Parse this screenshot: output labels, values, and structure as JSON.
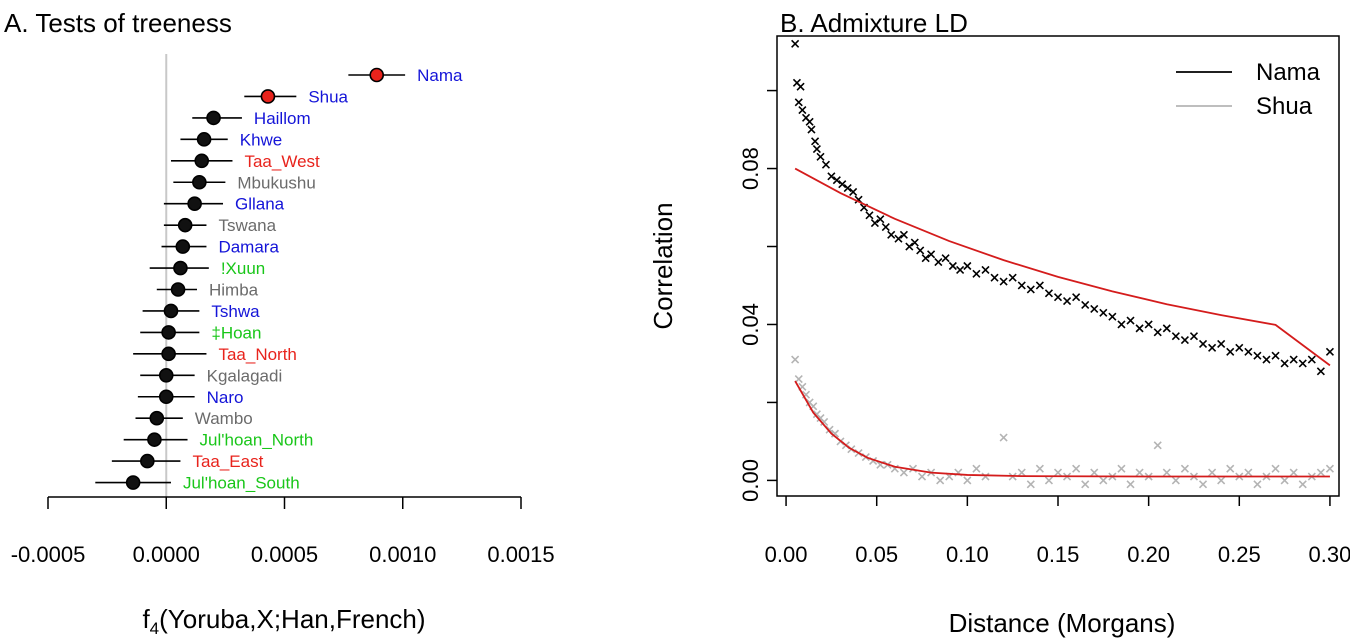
{
  "chart_data": [
    {
      "type": "forest",
      "title": "A. Tests of treeness",
      "xlabel_prefix": "f",
      "xlabel_sub": "4",
      "xlabel_rest": "(Yoruba,X;Han,French)",
      "xlim": [
        -0.0005,
        0.0015
      ],
      "xticks": [
        -0.0005,
        0.0,
        0.0005,
        0.001,
        0.0015
      ],
      "xtick_labels": [
        "-0.0005",
        "0.0000",
        "0.0005",
        "0.0010",
        "0.0015"
      ],
      "reference_line": 0.0,
      "colors": {
        "red_pt": "#e8231c",
        "black_pt": "#111111",
        "ci": "#000000",
        "ref": "#c8c8c8"
      },
      "populations": [
        {
          "label": "Nama",
          "value": 0.00089,
          "lo": 0.00077,
          "hi": 0.00101,
          "label_color": "#1414d8",
          "point": "red"
        },
        {
          "label": "Shua",
          "value": 0.00043,
          "lo": 0.00033,
          "hi": 0.00055,
          "label_color": "#1414d8",
          "point": "red"
        },
        {
          "label": "Haillom",
          "value": 0.0002,
          "lo": 0.00011,
          "hi": 0.00032,
          "label_color": "#1414d8",
          "point": "black"
        },
        {
          "label": "Khwe",
          "value": 0.00016,
          "lo": 6e-05,
          "hi": 0.00026,
          "label_color": "#1414d8",
          "point": "black"
        },
        {
          "label": "Taa_West",
          "value": 0.00015,
          "lo": 2e-05,
          "hi": 0.00028,
          "label_color": "#e8231c",
          "point": "black"
        },
        {
          "label": "Mbukushu",
          "value": 0.00014,
          "lo": 3e-05,
          "hi": 0.00025,
          "label_color": "#6b6b6b",
          "point": "black"
        },
        {
          "label": "Gllana",
          "value": 0.00012,
          "lo": -1e-05,
          "hi": 0.00024,
          "label_color": "#1414d8",
          "point": "black"
        },
        {
          "label": "Tswana",
          "value": 8e-05,
          "lo": -1e-05,
          "hi": 0.00017,
          "label_color": "#6b6b6b",
          "point": "black"
        },
        {
          "label": "Damara",
          "value": 7e-05,
          "lo": -2e-05,
          "hi": 0.00017,
          "label_color": "#1414d8",
          "point": "black"
        },
        {
          "label": "!Xuun",
          "value": 6e-05,
          "lo": -7e-05,
          "hi": 0.00018,
          "label_color": "#19c619",
          "point": "black"
        },
        {
          "label": "Himba",
          "value": 5e-05,
          "lo": -4e-05,
          "hi": 0.00013,
          "label_color": "#6b6b6b",
          "point": "black"
        },
        {
          "label": "Tshwa",
          "value": 2e-05,
          "lo": -0.0001,
          "hi": 0.00014,
          "label_color": "#1414d8",
          "point": "black"
        },
        {
          "label": "‡Hoan",
          "value": 1e-05,
          "lo": -0.00011,
          "hi": 0.00014,
          "label_color": "#19c619",
          "point": "black"
        },
        {
          "label": "Taa_North",
          "value": 1e-05,
          "lo": -0.00014,
          "hi": 0.00017,
          "label_color": "#e8231c",
          "point": "black"
        },
        {
          "label": "Kgalagadi",
          "value": 0.0,
          "lo": -0.00011,
          "hi": 0.00012,
          "label_color": "#6b6b6b",
          "point": "black"
        },
        {
          "label": "Naro",
          "value": 0.0,
          "lo": -0.00012,
          "hi": 0.00012,
          "label_color": "#1414d8",
          "point": "black"
        },
        {
          "label": "Wambo",
          "value": -4e-05,
          "lo": -0.00013,
          "hi": 7e-05,
          "label_color": "#6b6b6b",
          "point": "black"
        },
        {
          "label": "Jul'hoan_North",
          "value": -5e-05,
          "lo": -0.00018,
          "hi": 9e-05,
          "label_color": "#19c619",
          "point": "black"
        },
        {
          "label": "Taa_East",
          "value": -8e-05,
          "lo": -0.00023,
          "hi": 6e-05,
          "label_color": "#e8231c",
          "point": "black"
        },
        {
          "label": "Jul'hoan_South",
          "value": -0.00014,
          "lo": -0.0003,
          "hi": 2e-05,
          "label_color": "#19c619",
          "point": "black"
        }
      ]
    },
    {
      "type": "scatter",
      "title": "B. Admixture LD",
      "xlabel": "Distance (Morgans)",
      "ylabel": "Correlation",
      "xlim": [
        -0.005,
        0.305
      ],
      "ylim": [
        -0.004,
        0.114
      ],
      "xticks": [
        0.0,
        0.05,
        0.1,
        0.15,
        0.2,
        0.25,
        0.3
      ],
      "xtick_labels": [
        "0.00",
        "0.05",
        "0.10",
        "0.15",
        "0.20",
        "0.25",
        "0.30"
      ],
      "yticks": [
        0.0,
        0.04,
        0.08
      ],
      "ytick_labels": [
        "0.00",
        "0.04",
        "0.08"
      ],
      "legend_position": "top-right",
      "legend": [
        {
          "name": "Nama",
          "color": "#000000"
        },
        {
          "name": "Shua",
          "color": "#b4b4b4"
        }
      ],
      "fit_color": "#d41c1c",
      "series": [
        {
          "name": "Nama",
          "color": "#000000",
          "points": [
            [
              0.005,
              0.112
            ],
            [
              0.006,
              0.102
            ],
            [
              0.008,
              0.101
            ],
            [
              0.007,
              0.097
            ],
            [
              0.009,
              0.095
            ],
            [
              0.011,
              0.093
            ],
            [
              0.013,
              0.092
            ],
            [
              0.014,
              0.09
            ],
            [
              0.016,
              0.087
            ],
            [
              0.017,
              0.085
            ],
            [
              0.019,
              0.083
            ],
            [
              0.022,
              0.081
            ],
            [
              0.025,
              0.078
            ],
            [
              0.028,
              0.077
            ],
            [
              0.031,
              0.076
            ],
            [
              0.034,
              0.075
            ],
            [
              0.037,
              0.074
            ],
            [
              0.04,
              0.072
            ],
            [
              0.043,
              0.07
            ],
            [
              0.046,
              0.068
            ],
            [
              0.049,
              0.066
            ],
            [
              0.052,
              0.067
            ],
            [
              0.055,
              0.065
            ],
            [
              0.058,
              0.063
            ],
            [
              0.062,
              0.062
            ],
            [
              0.065,
              0.063
            ],
            [
              0.068,
              0.06
            ],
            [
              0.071,
              0.061
            ],
            [
              0.074,
              0.059
            ],
            [
              0.077,
              0.057
            ],
            [
              0.08,
              0.058
            ],
            [
              0.084,
              0.056
            ],
            [
              0.088,
              0.057
            ],
            [
              0.092,
              0.055
            ],
            [
              0.096,
              0.054
            ],
            [
              0.1,
              0.055
            ],
            [
              0.105,
              0.053
            ],
            [
              0.11,
              0.054
            ],
            [
              0.115,
              0.052
            ],
            [
              0.12,
              0.051
            ],
            [
              0.125,
              0.052
            ],
            [
              0.13,
              0.05
            ],
            [
              0.135,
              0.049
            ],
            [
              0.14,
              0.05
            ],
            [
              0.145,
              0.048
            ],
            [
              0.15,
              0.047
            ],
            [
              0.155,
              0.046
            ],
            [
              0.16,
              0.047
            ],
            [
              0.165,
              0.045
            ],
            [
              0.17,
              0.044
            ],
            [
              0.175,
              0.043
            ],
            [
              0.18,
              0.042
            ],
            [
              0.185,
              0.04
            ],
            [
              0.19,
              0.041
            ],
            [
              0.195,
              0.039
            ],
            [
              0.2,
              0.04
            ],
            [
              0.205,
              0.038
            ],
            [
              0.21,
              0.039
            ],
            [
              0.215,
              0.037
            ],
            [
              0.22,
              0.036
            ],
            [
              0.225,
              0.037
            ],
            [
              0.23,
              0.035
            ],
            [
              0.235,
              0.034
            ],
            [
              0.24,
              0.035
            ],
            [
              0.245,
              0.033
            ],
            [
              0.25,
              0.034
            ],
            [
              0.255,
              0.033
            ],
            [
              0.26,
              0.032
            ],
            [
              0.265,
              0.031
            ],
            [
              0.27,
              0.032
            ],
            [
              0.275,
              0.03
            ],
            [
              0.28,
              0.031
            ],
            [
              0.285,
              0.03
            ],
            [
              0.29,
              0.031
            ],
            [
              0.295,
              0.028
            ],
            [
              0.3,
              0.033
            ]
          ],
          "fit": [
            [
              0.005,
              0.08
            ],
            [
              0.03,
              0.0737
            ],
            [
              0.06,
              0.0671
            ],
            [
              0.09,
              0.0614
            ],
            [
              0.12,
              0.0565
            ],
            [
              0.15,
              0.0522
            ],
            [
              0.18,
              0.0485
            ],
            [
              0.21,
              0.0452
            ],
            [
              0.24,
              0.0424
            ],
            [
              0.27,
              0.0399
            ],
            [
              0.3,
              0.0295
            ]
          ]
        },
        {
          "name": "Shua",
          "color": "#b4b4b4",
          "points": [
            [
              0.005,
              0.031
            ],
            [
              0.007,
              0.026
            ],
            [
              0.009,
              0.024
            ],
            [
              0.011,
              0.022
            ],
            [
              0.013,
              0.02
            ],
            [
              0.015,
              0.019
            ],
            [
              0.017,
              0.017
            ],
            [
              0.019,
              0.016
            ],
            [
              0.021,
              0.015
            ],
            [
              0.024,
              0.013
            ],
            [
              0.027,
              0.012
            ],
            [
              0.03,
              0.01
            ],
            [
              0.033,
              0.009
            ],
            [
              0.036,
              0.008
            ],
            [
              0.04,
              0.007
            ],
            [
              0.044,
              0.006
            ],
            [
              0.048,
              0.005
            ],
            [
              0.052,
              0.004
            ],
            [
              0.056,
              0.004
            ],
            [
              0.06,
              0.003
            ],
            [
              0.065,
              0.002
            ],
            [
              0.07,
              0.003
            ],
            [
              0.075,
              0.001
            ],
            [
              0.08,
              0.002
            ],
            [
              0.085,
              0.0
            ],
            [
              0.09,
              0.001
            ],
            [
              0.095,
              0.002
            ],
            [
              0.1,
              0.0
            ],
            [
              0.105,
              0.003
            ],
            [
              0.11,
              0.001
            ],
            [
              0.12,
              0.011
            ],
            [
              0.125,
              0.001
            ],
            [
              0.13,
              0.002
            ],
            [
              0.135,
              -0.001
            ],
            [
              0.14,
              0.003
            ],
            [
              0.145,
              0.0
            ],
            [
              0.15,
              0.002
            ],
            [
              0.155,
              0.001
            ],
            [
              0.16,
              0.003
            ],
            [
              0.165,
              -0.001
            ],
            [
              0.17,
              0.002
            ],
            [
              0.175,
              0.0
            ],
            [
              0.18,
              0.001
            ],
            [
              0.185,
              0.003
            ],
            [
              0.19,
              -0.001
            ],
            [
              0.195,
              0.002
            ],
            [
              0.2,
              0.001
            ],
            [
              0.205,
              0.009
            ],
            [
              0.21,
              0.002
            ],
            [
              0.215,
              0.0
            ],
            [
              0.22,
              0.003
            ],
            [
              0.225,
              0.001
            ],
            [
              0.23,
              -0.001
            ],
            [
              0.235,
              0.002
            ],
            [
              0.24,
              0.0
            ],
            [
              0.245,
              0.003
            ],
            [
              0.25,
              0.001
            ],
            [
              0.255,
              0.002
            ],
            [
              0.26,
              -0.001
            ],
            [
              0.265,
              0.001
            ],
            [
              0.27,
              0.003
            ],
            [
              0.275,
              0.0
            ],
            [
              0.28,
              0.002
            ],
            [
              0.285,
              -0.001
            ],
            [
              0.29,
              0.001
            ],
            [
              0.295,
              0.002
            ],
            [
              0.3,
              0.003
            ]
          ],
          "fit": [
            [
              0.005,
              0.0255
            ],
            [
              0.015,
              0.0174
            ],
            [
              0.025,
              0.012
            ],
            [
              0.035,
              0.0083
            ],
            [
              0.045,
              0.0058
            ],
            [
              0.06,
              0.0035
            ],
            [
              0.08,
              0.002
            ],
            [
              0.1,
              0.0014
            ],
            [
              0.13,
              0.0011
            ],
            [
              0.2,
              0.001
            ],
            [
              0.3,
              0.001
            ]
          ]
        }
      ]
    }
  ]
}
